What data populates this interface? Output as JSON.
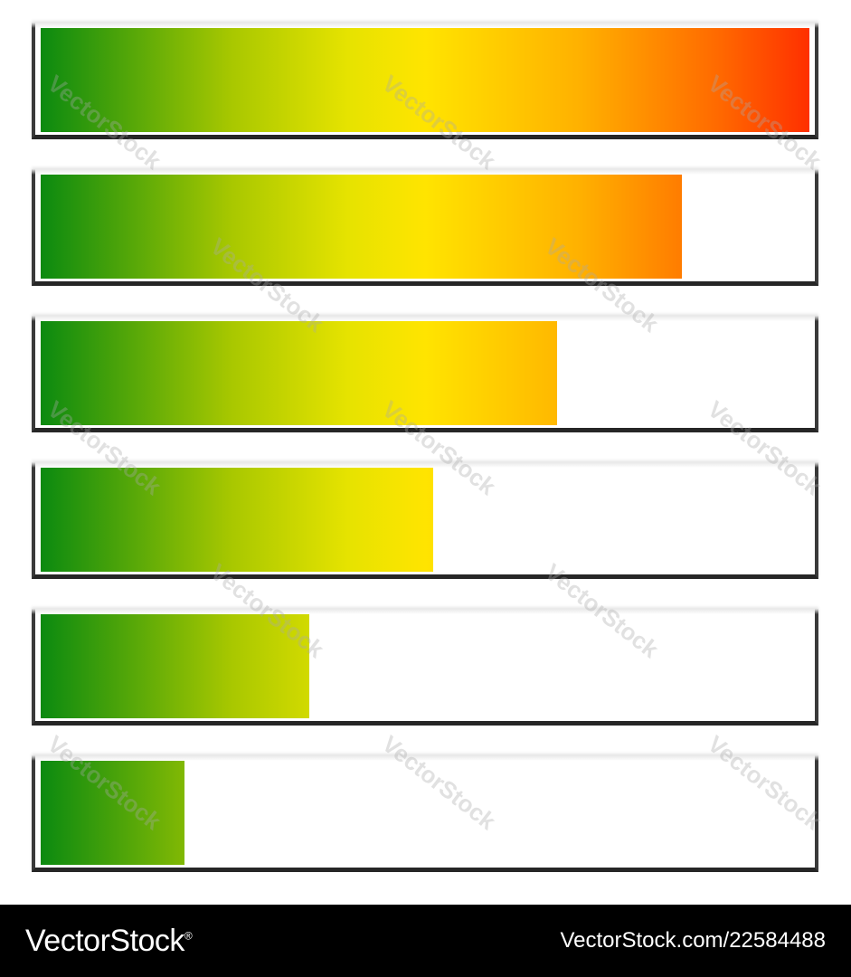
{
  "levels": [
    1.0,
    0.834,
    0.672,
    0.51,
    0.349,
    0.187
  ],
  "colors": {
    "low": "#0b8a10",
    "mid": "#ffe400",
    "high": "#ff3000",
    "frame": "#2b2b2b",
    "footer_bg": "#000000"
  },
  "watermark": "VectorStock",
  "footer": {
    "brand": "VectorStock",
    "registered": "®",
    "url": "VectorStock.com/22584488"
  }
}
